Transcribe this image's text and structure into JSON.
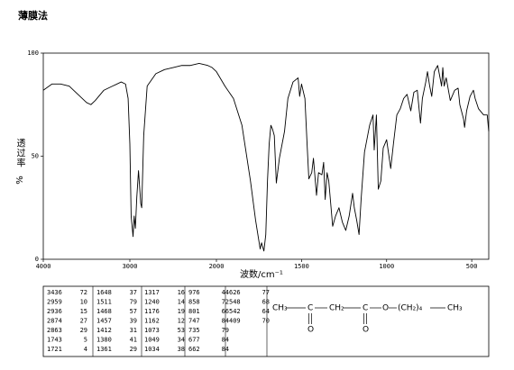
{
  "chart_data": {
    "type": "line",
    "title": "薄膜法",
    "ylabel": "透过率",
    "ylabel_unit": "%",
    "xlabel": "波数/cm⁻¹",
    "xlim": [
      4000,
      400
    ],
    "x_scale_break": 2000,
    "ylim": [
      0,
      100
    ],
    "xticks": [
      4000,
      3000,
      2000,
      1500,
      1000,
      500
    ],
    "yticks": [
      0,
      50,
      100
    ],
    "series": [
      {
        "color": "#000000",
        "x": [
          4000,
          3900,
          3800,
          3700,
          3600,
          3500,
          3450,
          3400,
          3300,
          3200,
          3100,
          3050,
          3020,
          3000,
          2985,
          2963,
          2950,
          2936,
          2920,
          2900,
          2874,
          2863,
          2840,
          2800,
          2700,
          2600,
          2500,
          2400,
          2300,
          2200,
          2100,
          2050,
          2000,
          1950,
          1900,
          1850,
          1800,
          1770,
          1743,
          1735,
          1721,
          1710,
          1700,
          1690,
          1680,
          1670,
          1660,
          1648,
          1630,
          1600,
          1580,
          1550,
          1520,
          1511,
          1500,
          1480,
          1468,
          1457,
          1440,
          1430,
          1412,
          1400,
          1380,
          1370,
          1361,
          1350,
          1340,
          1317,
          1300,
          1280,
          1260,
          1240,
          1220,
          1200,
          1190,
          1176,
          1162,
          1150,
          1130,
          1100,
          1080,
          1073,
          1060,
          1049,
          1034,
          1020,
          1000,
          976,
          960,
          940,
          920,
          900,
          880,
          858,
          840,
          820,
          801,
          790,
          770,
          760,
          747,
          735,
          720,
          700,
          677,
          670,
          662,
          650,
          626,
          600,
          580,
          570,
          548,
          542,
          530,
          510,
          490,
          480,
          460,
          430,
          409,
          400
        ],
        "values": [
          82,
          85,
          85,
          84,
          80,
          76,
          75,
          77,
          82,
          84,
          86,
          85,
          78,
          56,
          21,
          11,
          21,
          15,
          30,
          43,
          27,
          25,
          60,
          84,
          90,
          92,
          93,
          94,
          94,
          95,
          94,
          93,
          91,
          84,
          78,
          65,
          38,
          19,
          5,
          8,
          4,
          12,
          38,
          56,
          65,
          63,
          60,
          37,
          49,
          62,
          78,
          86,
          88,
          79,
          85,
          78,
          57,
          39,
          42,
          49,
          31,
          42,
          41,
          47,
          29,
          42,
          38,
          16,
          21,
          25,
          18,
          14,
          21,
          32,
          25,
          19,
          12,
          29,
          52,
          65,
          70,
          53,
          70,
          34,
          38,
          54,
          58,
          44,
          56,
          70,
          73,
          78,
          80,
          72,
          81,
          82,
          66,
          78,
          86,
          91,
          84,
          79,
          91,
          94,
          84,
          93,
          84,
          88,
          77,
          82,
          83,
          75,
          68,
          64,
          72,
          79,
          82,
          78,
          73,
          70,
          70,
          62
        ]
      }
    ]
  },
  "peak_table": [
    [
      [
        3436,
        72
      ],
      [
        2959,
        10
      ],
      [
        2936,
        15
      ],
      [
        2874,
        27
      ],
      [
        2863,
        29
      ],
      [
        1743,
        5
      ],
      [
        1721,
        4
      ]
    ],
    [
      [
        1648,
        37
      ],
      [
        1511,
        79
      ],
      [
        1468,
        57
      ],
      [
        1457,
        39
      ],
      [
        1412,
        31
      ],
      [
        1380,
        41
      ],
      [
        1361,
        29
      ]
    ],
    [
      [
        1317,
        16
      ],
      [
        1240,
        14
      ],
      [
        1176,
        19
      ],
      [
        1162,
        12
      ],
      [
        1073,
        53
      ],
      [
        1049,
        34
      ],
      [
        1034,
        38
      ]
    ],
    [
      [
        976,
        44
      ],
      [
        858,
        72
      ],
      [
        801,
        66
      ],
      [
        747,
        84
      ],
      [
        735,
        79
      ],
      [
        677,
        84
      ],
      [
        662,
        84
      ]
    ],
    [
      [
        626,
        77
      ],
      [
        548,
        68
      ],
      [
        542,
        64
      ],
      [
        409,
        70
      ]
    ]
  ],
  "structure": {
    "chain": [
      "CH₃",
      "C",
      "CH₂",
      "C",
      "O",
      "(CH₂)₄",
      "CH₃"
    ],
    "carbonyl_o": [
      "O",
      "O"
    ]
  }
}
